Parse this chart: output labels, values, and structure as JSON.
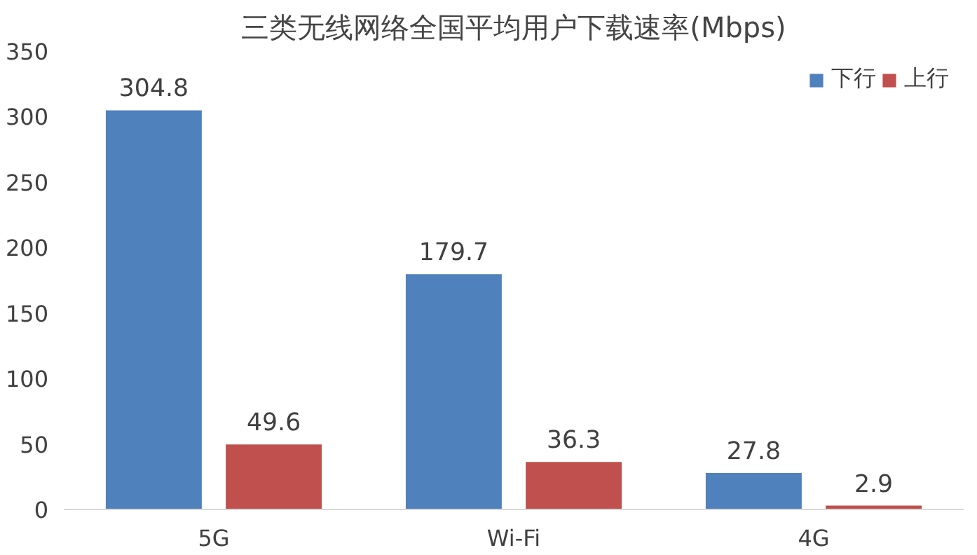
{
  "chart_data": {
    "type": "bar",
    "title": "三类无线网络全国平均用户下载速率(Mbps)",
    "categories": [
      "5G",
      "Wi-Fi",
      "4G"
    ],
    "series": [
      {
        "name": "下行",
        "color": "#4f81bd",
        "values": [
          304.8,
          179.7,
          27.8
        ]
      },
      {
        "name": "上行",
        "color": "#c0504d",
        "values": [
          49.6,
          36.3,
          2.9
        ]
      }
    ],
    "ylim": [
      0,
      350
    ],
    "yticks": [
      0,
      50,
      100,
      150,
      200,
      250,
      300,
      350
    ],
    "grid": false,
    "legend": "top right",
    "data_labels": true
  }
}
